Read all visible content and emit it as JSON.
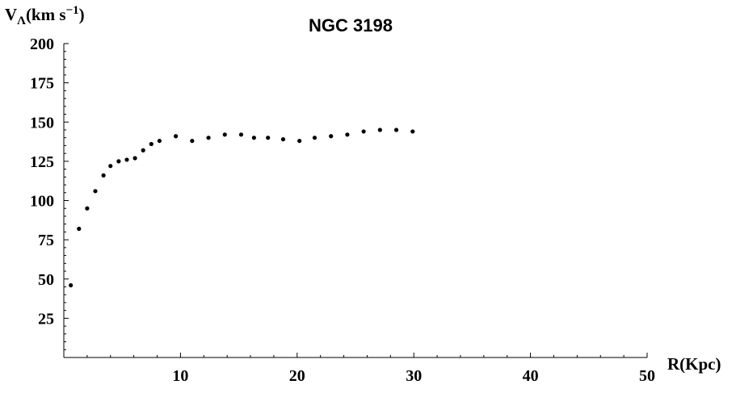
{
  "chart_data": {
    "type": "scatter",
    "title": "NGC 3198",
    "xlabel": "R(Kpc)",
    "ylabel": {
      "base": "V",
      "subscript": "Λ",
      "unit": "(km s",
      "exponent": "−1",
      "close": ")"
    },
    "xlim": [
      0,
      50
    ],
    "ylim": [
      0,
      200
    ],
    "x_ticks": [
      10,
      20,
      30,
      40,
      50
    ],
    "y_ticks": [
      25,
      50,
      75,
      100,
      125,
      150,
      175,
      200
    ],
    "x_tick_labels": [
      "10",
      "20",
      "30",
      "40",
      "50"
    ],
    "y_tick_labels": [
      "25",
      "50",
      "75",
      "100",
      "125",
      "150",
      "175",
      "200"
    ],
    "grid": false,
    "marker_color": "#000000",
    "series": [
      {
        "x": [
          0.6,
          1.3,
          2.0,
          2.7,
          3.4,
          4.0,
          4.7,
          5.4,
          6.1,
          6.8,
          7.5,
          8.2,
          9.6,
          11.0,
          12.4,
          13.8,
          15.2,
          16.3,
          17.5,
          18.8,
          20.2,
          21.5,
          22.9,
          24.3,
          25.7,
          27.1,
          28.5,
          29.9
        ],
        "y": [
          46,
          82,
          95,
          106,
          116,
          122,
          125,
          126,
          127,
          132,
          136,
          138,
          141,
          138,
          140,
          142,
          142,
          140,
          140,
          139,
          138,
          140,
          141,
          142,
          144,
          145,
          145,
          144
        ]
      }
    ]
  }
}
